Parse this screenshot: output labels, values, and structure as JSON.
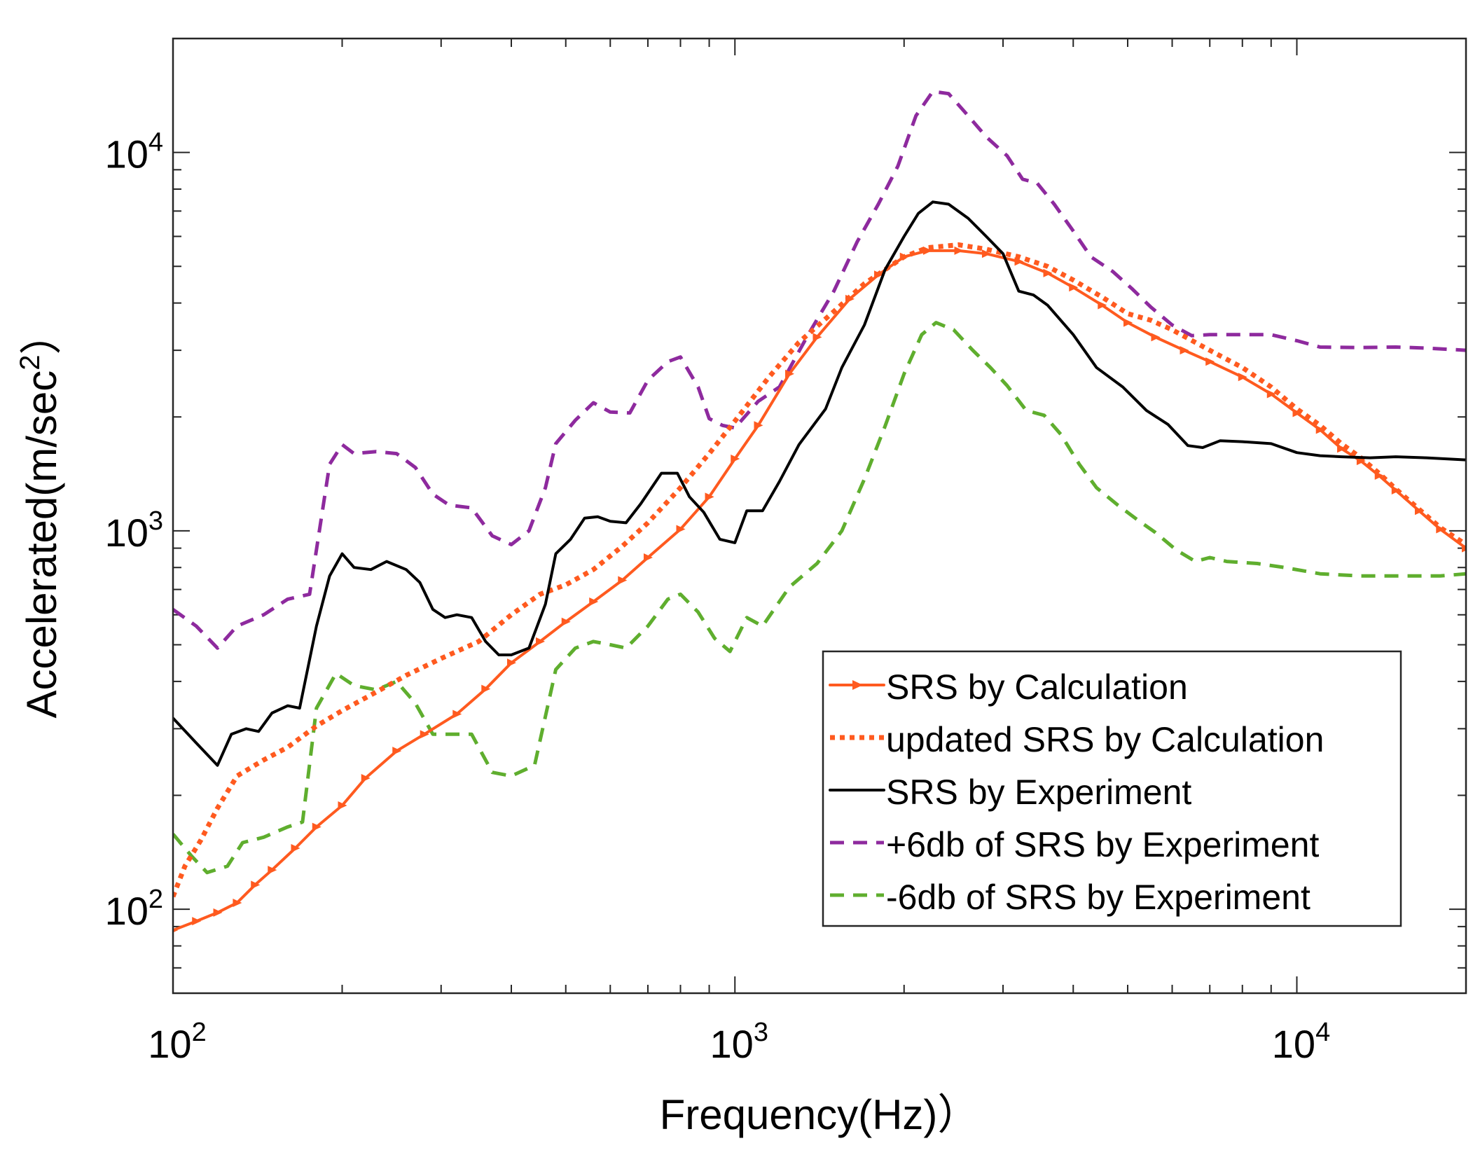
{
  "chart_data": {
    "type": "line",
    "x_scale": "log",
    "y_scale": "log",
    "xlabel": "Frequency(Hz)）",
    "ylabel": "Accelerated(m/sec²）",
    "ylabel_parts": {
      "main": "Accelerated(m/sec",
      "sup": "2",
      "tail": "）"
    },
    "xlim": [
      100,
      20000
    ],
    "ylim": [
      60,
      20000
    ],
    "x_ticks": [
      {
        "value": 100,
        "base": "10",
        "exp": "2"
      },
      {
        "value": 1000,
        "base": "10",
        "exp": "3"
      },
      {
        "value": 10000,
        "base": "10",
        "exp": "4"
      }
    ],
    "y_ticks": [
      {
        "value": 100,
        "base": "10",
        "exp": "2"
      },
      {
        "value": 1000,
        "base": "10",
        "exp": "3"
      },
      {
        "value": 10000,
        "base": "10",
        "exp": "4"
      }
    ],
    "legend_position": "lower-right",
    "series": [
      {
        "name": "SRS by Calculation",
        "color": "#FF5A1F",
        "style": "solid-marker",
        "points": [
          [
            100,
            88
          ],
          [
            110,
            93
          ],
          [
            120,
            98
          ],
          [
            130,
            104
          ],
          [
            140,
            116
          ],
          [
            150,
            127
          ],
          [
            165,
            145
          ],
          [
            180,
            165
          ],
          [
            200,
            188
          ],
          [
            220,
            222
          ],
          [
            250,
            262
          ],
          [
            280,
            290
          ],
          [
            320,
            328
          ],
          [
            360,
            382
          ],
          [
            400,
            448
          ],
          [
            450,
            510
          ],
          [
            500,
            575
          ],
          [
            560,
            650
          ],
          [
            630,
            740
          ],
          [
            700,
            850
          ],
          [
            800,
            1010
          ],
          [
            900,
            1230
          ],
          [
            1000,
            1550
          ],
          [
            1100,
            1900
          ],
          [
            1250,
            2600
          ],
          [
            1400,
            3250
          ],
          [
            1600,
            4100
          ],
          [
            1800,
            4750
          ],
          [
            2000,
            5300
          ],
          [
            2200,
            5500
          ],
          [
            2500,
            5500
          ],
          [
            2800,
            5400
          ],
          [
            3200,
            5150
          ],
          [
            3600,
            4800
          ],
          [
            4000,
            4400
          ],
          [
            4500,
            3950
          ],
          [
            5000,
            3550
          ],
          [
            5600,
            3250
          ],
          [
            6300,
            3000
          ],
          [
            7000,
            2800
          ],
          [
            8000,
            2550
          ],
          [
            9000,
            2300
          ],
          [
            10000,
            2050
          ],
          [
            11000,
            1850
          ],
          [
            12000,
            1650
          ],
          [
            13000,
            1530
          ],
          [
            14000,
            1400
          ],
          [
            15000,
            1280
          ],
          [
            16500,
            1130
          ],
          [
            18000,
            1010
          ],
          [
            20000,
            900
          ]
        ]
      },
      {
        "name": "updated SRS by Calculation",
        "color": "#FF5A1F",
        "style": "dotted",
        "points": [
          [
            100,
            108
          ],
          [
            105,
            130
          ],
          [
            112,
            152
          ],
          [
            120,
            185
          ],
          [
            130,
            225
          ],
          [
            145,
            248
          ],
          [
            160,
            268
          ],
          [
            180,
            305
          ],
          [
            200,
            335
          ],
          [
            230,
            375
          ],
          [
            260,
            415
          ],
          [
            300,
            460
          ],
          [
            350,
            510
          ],
          [
            400,
            600
          ],
          [
            450,
            680
          ],
          [
            500,
            720
          ],
          [
            560,
            790
          ],
          [
            630,
            910
          ],
          [
            700,
            1050
          ],
          [
            800,
            1300
          ],
          [
            900,
            1600
          ],
          [
            1000,
            1950
          ],
          [
            1150,
            2550
          ],
          [
            1300,
            3150
          ],
          [
            1500,
            3800
          ],
          [
            1700,
            4500
          ],
          [
            2000,
            5300
          ],
          [
            2200,
            5600
          ],
          [
            2500,
            5700
          ],
          [
            2800,
            5550
          ],
          [
            3200,
            5300
          ],
          [
            3600,
            5000
          ],
          [
            4000,
            4600
          ],
          [
            4500,
            4150
          ],
          [
            5000,
            3750
          ],
          [
            5500,
            3600
          ],
          [
            6000,
            3400
          ],
          [
            7000,
            3000
          ],
          [
            8000,
            2700
          ],
          [
            9000,
            2400
          ],
          [
            10000,
            2100
          ],
          [
            11000,
            1900
          ],
          [
            12000,
            1700
          ],
          [
            13000,
            1560
          ],
          [
            14000,
            1420
          ],
          [
            15000,
            1290
          ],
          [
            16500,
            1140
          ],
          [
            18000,
            1020
          ],
          [
            20000,
            920
          ]
        ]
      },
      {
        "name": "SRS by Experiment",
        "color": "#000000",
        "style": "solid",
        "points": [
          [
            100,
            320
          ],
          [
            110,
            275
          ],
          [
            120,
            240
          ],
          [
            127,
            290
          ],
          [
            135,
            300
          ],
          [
            142,
            295
          ],
          [
            150,
            330
          ],
          [
            160,
            345
          ],
          [
            168,
            340
          ],
          [
            180,
            560
          ],
          [
            190,
            760
          ],
          [
            200,
            870
          ],
          [
            210,
            800
          ],
          [
            225,
            790
          ],
          [
            240,
            830
          ],
          [
            260,
            790
          ],
          [
            275,
            730
          ],
          [
            290,
            620
          ],
          [
            305,
            590
          ],
          [
            320,
            600
          ],
          [
            340,
            590
          ],
          [
            360,
            510
          ],
          [
            380,
            470
          ],
          [
            400,
            470
          ],
          [
            430,
            490
          ],
          [
            460,
            640
          ],
          [
            480,
            870
          ],
          [
            510,
            950
          ],
          [
            540,
            1080
          ],
          [
            570,
            1090
          ],
          [
            600,
            1060
          ],
          [
            640,
            1050
          ],
          [
            680,
            1180
          ],
          [
            740,
            1420
          ],
          [
            790,
            1420
          ],
          [
            830,
            1230
          ],
          [
            880,
            1120
          ],
          [
            940,
            950
          ],
          [
            1000,
            930
          ],
          [
            1050,
            1130
          ],
          [
            1120,
            1130
          ],
          [
            1200,
            1350
          ],
          [
            1300,
            1690
          ],
          [
            1450,
            2100
          ],
          [
            1550,
            2700
          ],
          [
            1700,
            3500
          ],
          [
            1850,
            4900
          ],
          [
            2000,
            6000
          ],
          [
            2120,
            6900
          ],
          [
            2250,
            7400
          ],
          [
            2400,
            7300
          ],
          [
            2600,
            6700
          ],
          [
            2800,
            6000
          ],
          [
            3000,
            5400
          ],
          [
            3200,
            4300
          ],
          [
            3400,
            4200
          ],
          [
            3600,
            3950
          ],
          [
            4000,
            3300
          ],
          [
            4400,
            2700
          ],
          [
            4900,
            2400
          ],
          [
            5400,
            2080
          ],
          [
            5900,
            1910
          ],
          [
            6400,
            1680
          ],
          [
            6800,
            1660
          ],
          [
            7300,
            1730
          ],
          [
            8000,
            1720
          ],
          [
            9000,
            1700
          ],
          [
            10000,
            1610
          ],
          [
            11000,
            1580
          ],
          [
            12000,
            1570
          ],
          [
            13500,
            1560
          ],
          [
            15000,
            1570
          ],
          [
            17000,
            1560
          ],
          [
            20000,
            1540
          ]
        ]
      },
      {
        "name": "+6db of SRS by Experiment",
        "color": "#8E2A9E",
        "style": "dashed",
        "points": [
          [
            100,
            620
          ],
          [
            110,
            560
          ],
          [
            120,
            490
          ],
          [
            130,
            560
          ],
          [
            145,
            600
          ],
          [
            160,
            660
          ],
          [
            175,
            680
          ],
          [
            190,
            1500
          ],
          [
            200,
            1690
          ],
          [
            210,
            1600
          ],
          [
            230,
            1620
          ],
          [
            250,
            1600
          ],
          [
            270,
            1470
          ],
          [
            290,
            1250
          ],
          [
            310,
            1170
          ],
          [
            340,
            1150
          ],
          [
            370,
            970
          ],
          [
            400,
            920
          ],
          [
            430,
            1000
          ],
          [
            460,
            1300
          ],
          [
            480,
            1700
          ],
          [
            520,
            1960
          ],
          [
            560,
            2180
          ],
          [
            600,
            2060
          ],
          [
            650,
            2050
          ],
          [
            700,
            2500
          ],
          [
            760,
            2800
          ],
          [
            800,
            2880
          ],
          [
            860,
            2400
          ],
          [
            900,
            1980
          ],
          [
            950,
            1900
          ],
          [
            1000,
            1870
          ],
          [
            1100,
            2200
          ],
          [
            1200,
            2400
          ],
          [
            1350,
            3300
          ],
          [
            1500,
            4300
          ],
          [
            1650,
            5800
          ],
          [
            1800,
            7300
          ],
          [
            1950,
            9200
          ],
          [
            2100,
            12500
          ],
          [
            2250,
            14500
          ],
          [
            2400,
            14300
          ],
          [
            2600,
            12500
          ],
          [
            2800,
            11000
          ],
          [
            3050,
            9800
          ],
          [
            3250,
            8500
          ],
          [
            3450,
            8300
          ],
          [
            3700,
            7300
          ],
          [
            4000,
            6200
          ],
          [
            4300,
            5300
          ],
          [
            4700,
            4850
          ],
          [
            5100,
            4350
          ],
          [
            5500,
            3900
          ],
          [
            6000,
            3500
          ],
          [
            6500,
            3280
          ],
          [
            7000,
            3300
          ],
          [
            8000,
            3300
          ],
          [
            9000,
            3300
          ],
          [
            10000,
            3180
          ],
          [
            11000,
            3060
          ],
          [
            13000,
            3050
          ],
          [
            15000,
            3060
          ],
          [
            17000,
            3040
          ],
          [
            20000,
            3000
          ]
        ]
      },
      {
        "name": "-6db of SRS by Experiment",
        "color": "#5FAE2E",
        "style": "dashed",
        "points": [
          [
            100,
            158
          ],
          [
            108,
            138
          ],
          [
            115,
            125
          ],
          [
            125,
            130
          ],
          [
            133,
            150
          ],
          [
            145,
            155
          ],
          [
            160,
            165
          ],
          [
            170,
            170
          ],
          [
            180,
            340
          ],
          [
            195,
            420
          ],
          [
            210,
            390
          ],
          [
            230,
            380
          ],
          [
            250,
            400
          ],
          [
            270,
            350
          ],
          [
            290,
            290
          ],
          [
            320,
            290
          ],
          [
            340,
            290
          ],
          [
            370,
            230
          ],
          [
            400,
            225
          ],
          [
            440,
            240
          ],
          [
            480,
            430
          ],
          [
            520,
            490
          ],
          [
            560,
            510
          ],
          [
            600,
            500
          ],
          [
            640,
            490
          ],
          [
            700,
            560
          ],
          [
            760,
            660
          ],
          [
            800,
            680
          ],
          [
            860,
            610
          ],
          [
            920,
            520
          ],
          [
            980,
            480
          ],
          [
            1050,
            590
          ],
          [
            1120,
            560
          ],
          [
            1250,
            710
          ],
          [
            1400,
            820
          ],
          [
            1550,
            1000
          ],
          [
            1700,
            1370
          ],
          [
            1850,
            1890
          ],
          [
            2000,
            2600
          ],
          [
            2150,
            3300
          ],
          [
            2280,
            3550
          ],
          [
            2450,
            3400
          ],
          [
            2650,
            3000
          ],
          [
            2850,
            2700
          ],
          [
            3050,
            2420
          ],
          [
            3300,
            2080
          ],
          [
            3550,
            2020
          ],
          [
            3800,
            1800
          ],
          [
            4100,
            1500
          ],
          [
            4400,
            1300
          ],
          [
            4800,
            1170
          ],
          [
            5200,
            1070
          ],
          [
            5600,
            990
          ],
          [
            6100,
            890
          ],
          [
            6600,
            830
          ],
          [
            7000,
            850
          ],
          [
            7500,
            830
          ],
          [
            8500,
            820
          ],
          [
            9500,
            800
          ],
          [
            11000,
            770
          ],
          [
            13000,
            760
          ],
          [
            15000,
            760
          ],
          [
            18000,
            760
          ],
          [
            20000,
            770
          ]
        ]
      }
    ]
  }
}
